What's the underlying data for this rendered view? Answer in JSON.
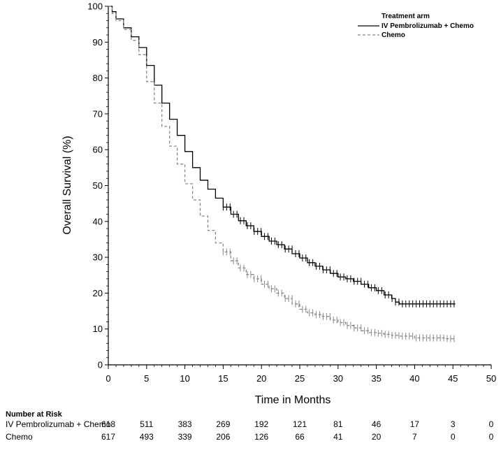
{
  "chart_data": {
    "type": "line",
    "title": "",
    "xlabel": "Time in Months",
    "ylabel": "Overall Survival (%)",
    "xlim": [
      0,
      50
    ],
    "ylim": [
      0,
      100
    ],
    "xticks": [
      0,
      5,
      10,
      15,
      20,
      25,
      30,
      35,
      40,
      45,
      50
    ],
    "yticks": [
      0,
      10,
      20,
      30,
      40,
      50,
      60,
      70,
      80,
      90,
      100
    ],
    "grid": false,
    "legend": {
      "title": "Treatment arm",
      "position": "top-right",
      "entries": [
        {
          "label": "IV Pembrolizumab + Chemo",
          "style": "solid",
          "color": "#000000"
        },
        {
          "label": "Chemo",
          "style": "dashed",
          "color": "#888888"
        }
      ]
    },
    "series": [
      {
        "name": "IV Pembrolizumab + Chemo",
        "style": "solid",
        "color": "#000000",
        "x": [
          0,
          0.5,
          1,
          2,
          3,
          4,
          5,
          6,
          7,
          8,
          9,
          10,
          11,
          12,
          13,
          14,
          15,
          16,
          17,
          18,
          19,
          20,
          21,
          22,
          23,
          24,
          25,
          26,
          27,
          28,
          29,
          30,
          31,
          32,
          33,
          34,
          35,
          36,
          37,
          37.5,
          38,
          40,
          42,
          44,
          45.3
        ],
        "y": [
          100,
          98.5,
          96.5,
          94,
          91.5,
          88.5,
          83.5,
          78,
          73,
          68.5,
          64,
          59.5,
          55,
          51.5,
          49,
          46.5,
          44,
          42,
          40.2,
          38.8,
          37.2,
          35.8,
          34.5,
          33.5,
          32.3,
          31,
          29.8,
          28.5,
          27.5,
          26.5,
          25.5,
          24.5,
          24,
          23.3,
          22.5,
          21.5,
          20.7,
          19.5,
          18.5,
          17.5,
          17,
          17,
          17,
          17,
          17
        ]
      },
      {
        "name": "Chemo",
        "style": "dashed",
        "color": "#888888",
        "x": [
          0,
          0.5,
          1,
          2,
          3,
          4,
          5,
          6,
          7,
          8,
          9,
          10,
          11,
          12,
          13,
          14,
          15,
          16,
          17,
          18,
          19,
          20,
          21,
          22,
          23,
          24,
          25,
          26,
          27,
          28,
          29,
          30,
          31,
          32,
          33,
          34,
          35,
          36,
          37,
          38,
          40,
          42,
          44,
          45.3
        ],
        "y": [
          100,
          98,
          96,
          93.5,
          90.5,
          86.5,
          79,
          73,
          66.5,
          61,
          56,
          50.5,
          46,
          41.5,
          37.5,
          34,
          31.5,
          29,
          27,
          25.2,
          24,
          22.5,
          21.2,
          20,
          18.5,
          17,
          15.5,
          14.5,
          14,
          13.5,
          12.5,
          11.8,
          11,
          10.3,
          9.5,
          9,
          8.8,
          8.5,
          8.2,
          8,
          7.5,
          7.5,
          7.3,
          7.3
        ]
      }
    ],
    "number_at_risk": {
      "title": "Number at Risk",
      "rows": [
        {
          "label": "IV Pembrolizumab + Chemo",
          "values": [
            618,
            511,
            383,
            269,
            192,
            121,
            81,
            46,
            17,
            3,
            0
          ]
        },
        {
          "label": "Chemo",
          "values": [
            617,
            493,
            339,
            206,
            126,
            66,
            41,
            20,
            7,
            0,
            0
          ]
        }
      ]
    }
  }
}
